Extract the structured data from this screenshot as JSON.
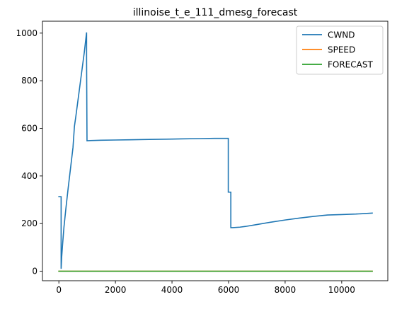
{
  "chart_data": {
    "type": "line",
    "title": "illinoise_t_e_111_dmesg_forecast",
    "xlabel": "",
    "ylabel": "",
    "xlim": [
      -580,
      11630
    ],
    "ylim": [
      -40,
      1050
    ],
    "xticks": [
      0,
      2000,
      4000,
      6000,
      8000,
      10000
    ],
    "yticks": [
      0,
      200,
      400,
      600,
      800,
      1000
    ],
    "grid": false,
    "legend_position": "upper-right",
    "series": [
      {
        "name": "CWND",
        "color": "#1f77b4",
        "x": [
          0,
          80,
          80,
          100,
          130,
          180,
          250,
          330,
          420,
          500,
          550,
          600,
          700,
          800,
          900,
          980,
          980,
          995,
          1000,
          1200,
          1500,
          2000,
          2500,
          3000,
          4000,
          5000,
          5500,
          5990,
          5990,
          6000,
          6080,
          6080,
          6150,
          6400,
          6600,
          7000,
          7500,
          8000,
          8500,
          9000,
          9500,
          10000,
          10500,
          11080
        ],
        "y": [
          313,
          313,
          10,
          60,
          110,
          185,
          265,
          350,
          440,
          520,
          608,
          650,
          740,
          830,
          920,
          1003,
          900,
          548,
          548,
          549,
          550,
          551,
          552,
          553,
          555,
          557,
          558,
          558,
          332,
          332,
          332,
          183,
          183,
          185,
          188,
          196,
          206,
          215,
          223,
          230,
          236,
          238,
          240,
          244
        ]
      },
      {
        "name": "SPEED",
        "color": "#ff7f0e",
        "x": [
          0,
          11080
        ],
        "y": [
          0,
          0
        ]
      },
      {
        "name": "FORECAST",
        "color": "#2ca02c",
        "x": [
          0,
          11080
        ],
        "y": [
          0,
          0
        ]
      }
    ]
  }
}
